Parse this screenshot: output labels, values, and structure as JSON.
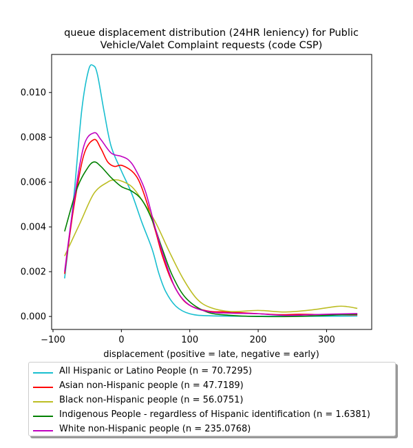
{
  "chart_data": {
    "type": "line",
    "title": "queue displacement distribution (24HR leniency) for Public Vehicle/Valet Complaint  requests (code CSP)",
    "title_lines": [
      "queue displacement distribution (24HR leniency) for Public",
      "Vehicle/Valet Complaint  requests (code CSP)"
    ],
    "xlabel": "displacement (positive = late, negative = early)",
    "ylabel": "",
    "xlim": [
      -102,
      366
    ],
    "ylim": [
      -0.00058,
      0.0117
    ],
    "xticks": [
      -100,
      0,
      100,
      200,
      300
    ],
    "xtick_labels": [
      "−100",
      "0",
      "100",
      "200",
      "300"
    ],
    "yticks": [
      0.0,
      0.002,
      0.004,
      0.006,
      0.008,
      0.01
    ],
    "ytick_labels": [
      "0.000",
      "0.002",
      "0.004",
      "0.006",
      "0.008",
      "0.010"
    ],
    "grid": false,
    "legend_placement": "below-plot",
    "series": [
      {
        "name": "All Hispanic or Latino People (n = 70.7295)",
        "color": "#17becf",
        "points": [
          [
            -83,
            0.0017
          ],
          [
            -70,
            0.0052
          ],
          [
            -58,
            0.0092
          ],
          [
            -48,
            0.011
          ],
          [
            -41,
            0.0112
          ],
          [
            -35,
            0.0108
          ],
          [
            -25,
            0.0091
          ],
          [
            -15,
            0.0076
          ],
          [
            0,
            0.0065
          ],
          [
            15,
            0.0055
          ],
          [
            30,
            0.0042
          ],
          [
            45,
            0.003
          ],
          [
            55,
            0.0019
          ],
          [
            65,
            0.0011
          ],
          [
            80,
            0.00045
          ],
          [
            100,
            0.00012
          ],
          [
            130,
            3e-05
          ],
          [
            200,
            1e-05
          ],
          [
            300,
            1e-05
          ],
          [
            345,
            2e-05
          ]
        ]
      },
      {
        "name": "Asian non-Hispanic people (n = 47.7189)",
        "color": "#ff0000",
        "points": [
          [
            -83,
            0.0019
          ],
          [
            -70,
            0.0048
          ],
          [
            -55,
            0.0072
          ],
          [
            -40,
            0.0079
          ],
          [
            -30,
            0.0075
          ],
          [
            -20,
            0.0069
          ],
          [
            -10,
            0.0067
          ],
          [
            0,
            0.00675
          ],
          [
            15,
            0.0065
          ],
          [
            25,
            0.0061
          ],
          [
            35,
            0.0053
          ],
          [
            50,
            0.0038
          ],
          [
            60,
            0.0027
          ],
          [
            75,
            0.0015
          ],
          [
            95,
            0.0006
          ],
          [
            125,
            0.00025
          ],
          [
            155,
            0.0002
          ],
          [
            185,
            0.00015
          ],
          [
            230,
            8e-05
          ],
          [
            260,
            0.0001
          ],
          [
            300,
            8e-05
          ],
          [
            345,
            7e-05
          ]
        ]
      },
      {
        "name": "Black non-Hispanic people (n = 56.0751)",
        "color": "#bcbd22",
        "points": [
          [
            -83,
            0.0027
          ],
          [
            -60,
            0.0042
          ],
          [
            -40,
            0.0055
          ],
          [
            -20,
            0.006
          ],
          [
            -10,
            0.0061
          ],
          [
            0,
            0.00605
          ],
          [
            15,
            0.0058
          ],
          [
            30,
            0.0052
          ],
          [
            50,
            0.0042
          ],
          [
            70,
            0.0029
          ],
          [
            90,
            0.0017
          ],
          [
            110,
            0.0008
          ],
          [
            130,
            0.0004
          ],
          [
            160,
            0.00022
          ],
          [
            200,
            0.00027
          ],
          [
            240,
            0.0002
          ],
          [
            280,
            0.0003
          ],
          [
            315,
            0.00045
          ],
          [
            330,
            0.00044
          ],
          [
            345,
            0.00036
          ]
        ]
      },
      {
        "name": "Indigenous People - regardless of Hispanic identification (n = 1.6381)",
        "color": "#008000",
        "points": [
          [
            -83,
            0.0038
          ],
          [
            -65,
            0.0057
          ],
          [
            -50,
            0.0066
          ],
          [
            -40,
            0.0069
          ],
          [
            -30,
            0.0067
          ],
          [
            -15,
            0.0062
          ],
          [
            0,
            0.0058
          ],
          [
            15,
            0.0056
          ],
          [
            30,
            0.0052
          ],
          [
            45,
            0.0043
          ],
          [
            60,
            0.003
          ],
          [
            75,
            0.0018
          ],
          [
            95,
            0.0008
          ],
          [
            125,
            0.0002
          ],
          [
            160,
            5e-05
          ],
          [
            200,
            0.0
          ],
          [
            250,
            0.0
          ],
          [
            300,
            5e-05
          ],
          [
            345,
            0.0001
          ]
        ]
      },
      {
        "name": "White non-Hispanic people (n = 235.0768)",
        "color": "#c000c0",
        "points": [
          [
            -83,
            0.002
          ],
          [
            -70,
            0.005
          ],
          [
            -55,
            0.0076
          ],
          [
            -40,
            0.0082
          ],
          [
            -30,
            0.0079
          ],
          [
            -15,
            0.0073
          ],
          [
            0,
            0.00715
          ],
          [
            10,
            0.007
          ],
          [
            20,
            0.0066
          ],
          [
            35,
            0.0056
          ],
          [
            50,
            0.0039
          ],
          [
            65,
            0.0024
          ],
          [
            80,
            0.0012
          ],
          [
            100,
            0.0005
          ],
          [
            130,
            0.0002
          ],
          [
            160,
            0.00015
          ],
          [
            200,
            0.00012
          ],
          [
            240,
            5e-05
          ],
          [
            300,
            0.0001
          ],
          [
            345,
            0.00013
          ]
        ]
      }
    ]
  }
}
